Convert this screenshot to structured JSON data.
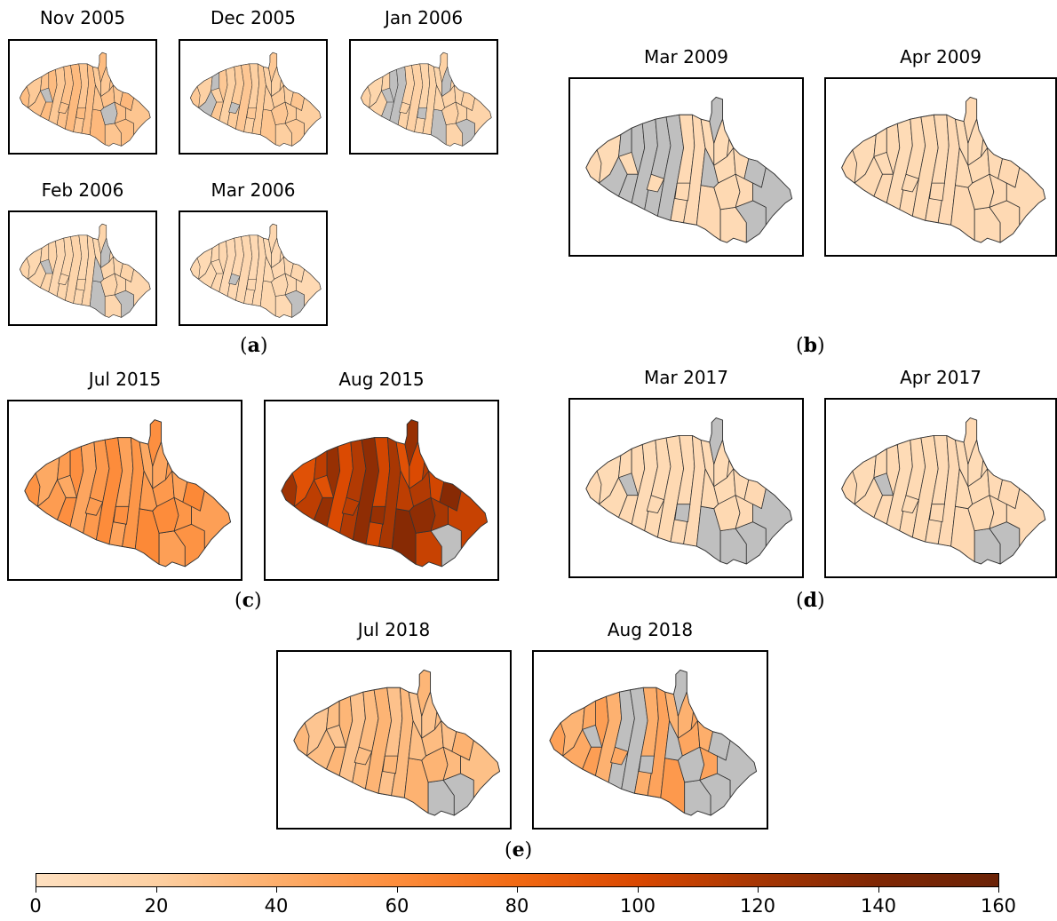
{
  "groups": [
    {
      "id": "a",
      "letter": "a",
      "panels": [
        {
          "title": "Nov 2005",
          "fill": 0.18,
          "nodata": [
            22,
            16
          ]
        },
        {
          "title": "Dec 2005",
          "fill": 0.14,
          "nodata": [
            23,
            1
          ]
        },
        {
          "title": "Jan 2006",
          "fill": 0.1,
          "nodata": [
            22,
            24,
            3,
            2,
            10,
            14,
            8
          ]
        },
        {
          "title": "Feb 2006",
          "fill": 0.08,
          "nodata": [
            22,
            12,
            10,
            14,
            8
          ]
        },
        {
          "title": "Mar 2006",
          "fill": 0.06,
          "nodata": [
            23,
            10
          ]
        }
      ]
    },
    {
      "id": "b",
      "letter": "b",
      "panels": [
        {
          "title": "Mar 2009",
          "fill": 0.05,
          "nodata": [
            1,
            2,
            3,
            4,
            5,
            12,
            13,
            19,
            20,
            10
          ]
        },
        {
          "title": "Apr 2009",
          "fill": 0.05,
          "nodata": []
        }
      ]
    },
    {
      "id": "c",
      "letter": "c",
      "panels": [
        {
          "title": "Jul 2015",
          "fill": 0.33,
          "nodata": []
        },
        {
          "title": "Aug 2015",
          "fill": 0.72,
          "nodata": [
            10
          ]
        }
      ]
    },
    {
      "id": "d",
      "letter": "d",
      "panels": [
        {
          "title": "Mar 2017",
          "fill": 0.05,
          "nodata": [
            24,
            22,
            13,
            20,
            8,
            9,
            10
          ]
        },
        {
          "title": "Apr 2017",
          "fill": 0.05,
          "nodata": [
            22,
            9,
            10
          ]
        }
      ]
    },
    {
      "id": "e",
      "letter": "e",
      "panels": [
        {
          "title": "Jul 2018",
          "fill": 0.2,
          "nodata": [
            9,
            10
          ]
        },
        {
          "title": "Aug 2018",
          "fill": 0.28,
          "nodata": [
            24,
            22,
            19,
            20,
            4,
            5,
            12,
            13,
            9,
            10,
            16
          ]
        }
      ]
    }
  ],
  "colorbar": {
    "min": 0,
    "max": 160,
    "ticks": [
      "0",
      "20",
      "40",
      "60",
      "80",
      "100",
      "120",
      "140",
      "160"
    ],
    "colors": [
      "#fee0c0",
      "#fdd0a2",
      "#fdae6b",
      "#fd8d3c",
      "#f16913",
      "#d94801",
      "#a63603",
      "#7f2704",
      "#6b2307"
    ],
    "nodata_color": "#bfbfbf",
    "outline_color": "#333333"
  }
}
